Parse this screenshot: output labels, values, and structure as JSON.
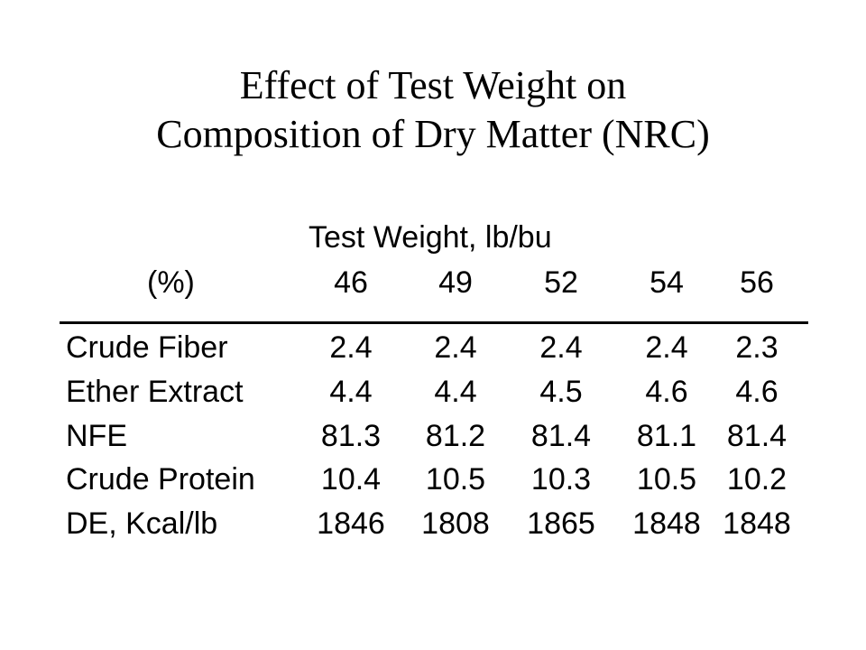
{
  "title": {
    "line1": "Effect of Test Weight on",
    "line2": "Composition of Dry Matter (NRC)"
  },
  "table": {
    "group_header": "Test Weight, lb/bu",
    "unit_header": "(%)",
    "columns": [
      "46",
      "49",
      "52",
      "54",
      "56"
    ],
    "rows": [
      {
        "label": "Crude Fiber",
        "values": [
          "2.4",
          "2.4",
          "2.4",
          "2.4",
          "2.3"
        ]
      },
      {
        "label": "Ether Extract",
        "values": [
          "4.4",
          "4.4",
          "4.5",
          "4.6",
          "4.6"
        ]
      },
      {
        "label": "NFE",
        "values": [
          "81.3",
          "81.2",
          "81.4",
          "81.1",
          "81.4"
        ]
      },
      {
        "label": "Crude Protein",
        "values": [
          "10.4",
          "10.5",
          "10.3",
          "10.5",
          "10.2"
        ]
      },
      {
        "label": "DE, Kcal/lb",
        "values": [
          "1846",
          "1808",
          "1865",
          "1848",
          "1848"
        ]
      }
    ]
  }
}
